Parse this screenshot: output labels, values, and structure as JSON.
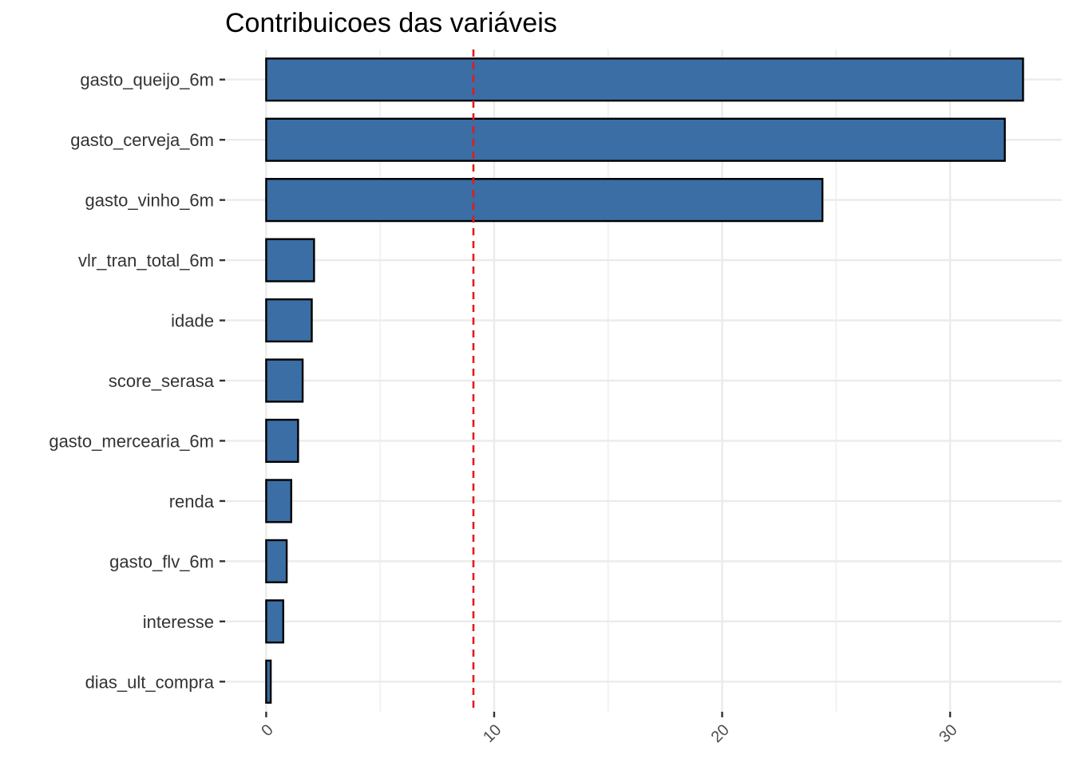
{
  "chart_data": {
    "type": "bar",
    "orientation": "horizontal",
    "title": "Contribuicoes das variáveis",
    "xlabel": "",
    "ylabel": "",
    "categories": [
      "gasto_queijo_6m",
      "gasto_cerveja_6m",
      "gasto_vinho_6m",
      "vlr_tran_total_6m",
      "idade",
      "score_serasa",
      "gasto_mercearia_6m",
      "renda",
      "gasto_flv_6m",
      "interesse",
      "dias_ult_compra"
    ],
    "values": [
      33.2,
      32.4,
      24.4,
      2.1,
      2.0,
      1.6,
      1.4,
      1.1,
      0.9,
      0.75,
      0.2
    ],
    "xlim": [
      -1.8,
      34.9
    ],
    "xticks": [
      0,
      10,
      20,
      30
    ],
    "reference_line": 9.09,
    "grid": true,
    "colors": {
      "bar_fill": "#3a6ea5",
      "bar_stroke": "#000000",
      "reference_line": "#e41a1c",
      "grid": "#ebebeb"
    }
  }
}
